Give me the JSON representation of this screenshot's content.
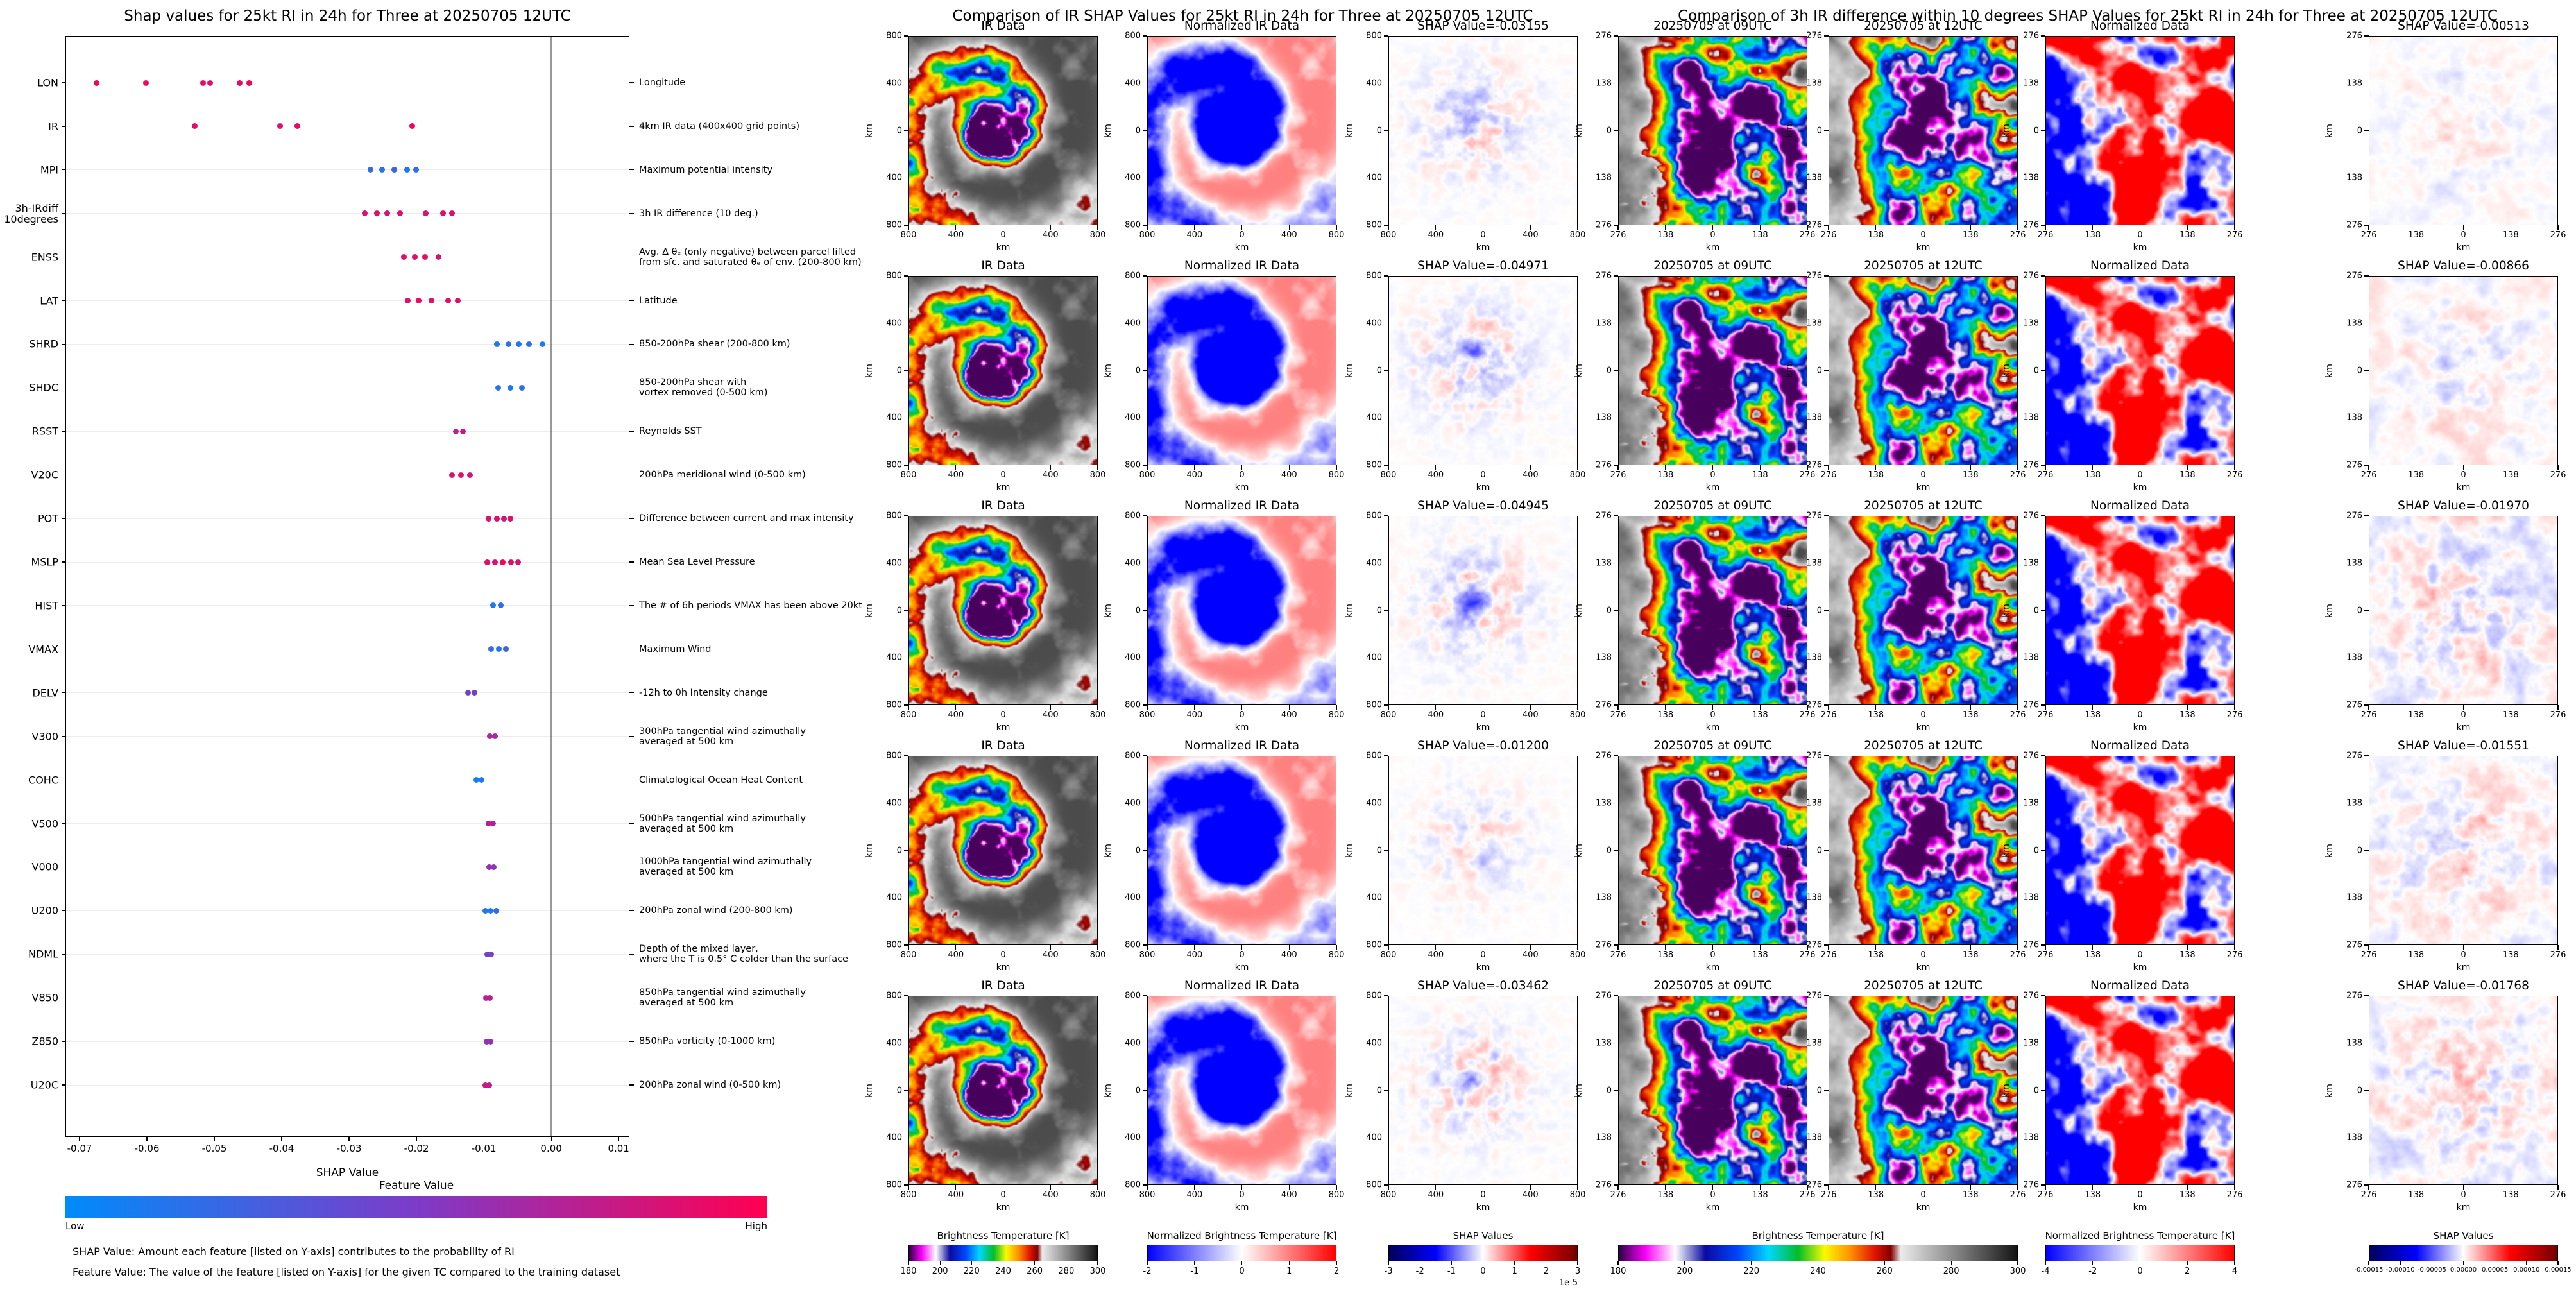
{
  "chart_data": [
    {
      "type": "scatter",
      "subtype": "shap_beeswarm",
      "title": "Shap values for 25kt RI in 24h for Three at 20250705 12UTC",
      "xlabel": "SHAP Value",
      "xlim": [
        -0.072,
        0.0117
      ],
      "x_ticks": [
        -0.07,
        -0.06,
        -0.05,
        -0.04,
        -0.03,
        -0.02,
        -0.01,
        0.0,
        0.01
      ],
      "x_tick_labels": [
        "-0.07",
        "-0.06",
        "-0.05",
        "-0.04",
        "-0.03",
        "-0.02",
        "-0.01",
        "0.00",
        "0.01"
      ],
      "legend": {
        "title": "Feature Value",
        "low": "Low",
        "high": "High",
        "color_low": "#008bfb",
        "color_high": "#ff0051"
      },
      "footnotes": [
        "SHAP Value: Amount each feature [listed on Y-axis] contributes to the probability of RI",
        "Feature Value: The value of the feature [listed on Y-axis] for the given TC compared to the training dataset"
      ],
      "features": [
        {
          "label": "LON",
          "description": "Longitude",
          "points": [
            [
              -0.0675,
              0.97
            ],
            [
              -0.0601,
              0.93
            ],
            [
              -0.0517,
              0.9
            ],
            [
              -0.0506,
              0.88
            ],
            [
              -0.0462,
              0.92
            ],
            [
              -0.0448,
              0.95
            ]
          ]
        },
        {
          "label": "IR",
          "description": "4km IR data (400x400 grid points)",
          "points": [
            [
              -0.0529,
              0.9
            ],
            [
              -0.0402,
              0.87
            ],
            [
              -0.0377,
              0.92
            ],
            [
              -0.0206,
              0.95
            ]
          ]
        },
        {
          "label": "MPI",
          "description": "Maximum potential intensity",
          "points": [
            [
              -0.0268,
              0.2
            ],
            [
              -0.0251,
              0.15
            ],
            [
              -0.0233,
              0.25
            ],
            [
              -0.0214,
              0.1
            ],
            [
              -0.0201,
              0.18
            ]
          ]
        },
        {
          "label": "3h-IRdiff\n10degrees",
          "description": "3h IR difference (10 deg.)",
          "points": [
            [
              -0.0277,
              0.85
            ],
            [
              -0.0259,
              0.9
            ],
            [
              -0.0243,
              0.82
            ],
            [
              -0.0224,
              0.88
            ],
            [
              -0.0186,
              0.84
            ],
            [
              -0.0161,
              0.9
            ],
            [
              -0.0147,
              0.86
            ]
          ]
        },
        {
          "label": "ENSS",
          "description": "Avg. Δ θₑ (only negative) between parcel lifted\nfrom sfc. and saturated θₑ of env. (200-800 km)",
          "points": [
            [
              -0.0219,
              0.9
            ],
            [
              -0.0202,
              0.86
            ],
            [
              -0.0187,
              0.92
            ],
            [
              -0.0167,
              0.84
            ]
          ]
        },
        {
          "label": "LAT",
          "description": "Latitude",
          "points": [
            [
              -0.0213,
              0.88
            ],
            [
              -0.0197,
              0.92
            ],
            [
              -0.0178,
              0.85
            ],
            [
              -0.0153,
              0.9
            ],
            [
              -0.0139,
              0.87
            ]
          ]
        },
        {
          "label": "SHRD",
          "description": "850-200hPa shear (200-800 km)",
          "points": [
            [
              -0.0081,
              0.12
            ],
            [
              -0.0063,
              0.18
            ],
            [
              -0.0048,
              0.1
            ],
            [
              -0.0033,
              0.2
            ],
            [
              -0.0013,
              0.12
            ]
          ]
        },
        {
          "label": "SHDC",
          "description": "850-200hPa shear with\nvortex removed (0-500 km)",
          "points": [
            [
              -0.0079,
              0.15
            ],
            [
              -0.0061,
              0.1
            ],
            [
              -0.0043,
              0.18
            ]
          ]
        },
        {
          "label": "RSST",
          "description": "Reynolds SST",
          "points": [
            [
              -0.0142,
              0.72
            ],
            [
              -0.0131,
              0.78
            ]
          ]
        },
        {
          "label": "V20C",
          "description": "200hPa meridional wind (0-500 km)",
          "points": [
            [
              -0.0147,
              0.85
            ],
            [
              -0.0134,
              0.9
            ],
            [
              -0.0121,
              0.82
            ]
          ]
        },
        {
          "label": "POT",
          "description": "Difference between current and max intensity",
          "points": [
            [
              -0.0093,
              0.85
            ],
            [
              -0.0081,
              0.9
            ],
            [
              -0.007,
              0.82
            ],
            [
              -0.0061,
              0.88
            ]
          ]
        },
        {
          "label": "MSLP",
          "description": "Mean Sea Level Pressure",
          "points": [
            [
              -0.0095,
              0.92
            ],
            [
              -0.0083,
              0.86
            ],
            [
              -0.0072,
              0.95
            ],
            [
              -0.006,
              0.9
            ],
            [
              -0.0049,
              0.85
            ]
          ]
        },
        {
          "label": "HIST",
          "description": "The # of 6h periods VMAX has been above 20kt",
          "points": [
            [
              -0.0086,
              0.12
            ],
            [
              -0.0075,
              0.18
            ]
          ]
        },
        {
          "label": "VMAX",
          "description": "Maximum Wind",
          "points": [
            [
              -0.0089,
              0.2
            ],
            [
              -0.0078,
              0.15
            ],
            [
              -0.0067,
              0.25
            ]
          ]
        },
        {
          "label": "DELV",
          "description": "-12h to 0h Intensity change",
          "points": [
            [
              -0.0123,
              0.45
            ],
            [
              -0.0114,
              0.5
            ]
          ]
        },
        {
          "label": "V300",
          "description": "300hPa tangential wind azimuthally\naveraged at 500 km",
          "points": [
            [
              -0.0091,
              0.7
            ],
            [
              -0.0083,
              0.65
            ]
          ]
        },
        {
          "label": "COHC",
          "description": "Climatological Ocean Heat Content",
          "points": [
            [
              -0.0111,
              0.08
            ],
            [
              -0.0103,
              0.12
            ]
          ]
        },
        {
          "label": "V500",
          "description": "500hPa tangential wind azimuthally\naveraged at 500 km",
          "points": [
            [
              -0.0093,
              0.75
            ],
            [
              -0.0086,
              0.7
            ]
          ]
        },
        {
          "label": "V000",
          "description": "1000hPa tangential wind azimuthally\naveraged at 500 km",
          "points": [
            [
              -0.0092,
              0.6
            ],
            [
              -0.0085,
              0.55
            ]
          ]
        },
        {
          "label": "U200",
          "description": "200hPa zonal wind (200-800 km)",
          "points": [
            [
              -0.0098,
              0.15
            ],
            [
              -0.009,
              0.1
            ],
            [
              -0.0082,
              0.2
            ]
          ]
        },
        {
          "label": "NDML",
          "description": "Depth of the mixed layer,\nwhere the T is 0.5° C colder than the surface",
          "points": [
            [
              -0.0095,
              0.5
            ],
            [
              -0.0089,
              0.45
            ]
          ]
        },
        {
          "label": "V850",
          "description": "850hPa tangential wind azimuthally\naveraged at 500 km",
          "points": [
            [
              -0.0097,
              0.7
            ],
            [
              -0.0091,
              0.75
            ]
          ]
        },
        {
          "label": "Z850",
          "description": "850hPa vorticity (0-1000 km)",
          "points": [
            [
              -0.0096,
              0.55
            ],
            [
              -0.009,
              0.6
            ]
          ]
        },
        {
          "label": "U20C",
          "description": "200hPa zonal wind (0-500 km)",
          "points": [
            [
              -0.0098,
              0.8
            ],
            [
              -0.0092,
              0.75
            ]
          ]
        }
      ]
    },
    {
      "type": "heatmap",
      "subtype": "ir_shap_comparison",
      "title": "Comparison of IR SHAP Values for 25kt RI in 24h for Three at 20250705 12UTC",
      "column_titles": [
        "IR Data",
        "Normalized IR Data"
      ],
      "shap_title_prefix": "SHAP Value=",
      "row_shap_values": [
        -0.03155,
        -0.04971,
        -0.04945,
        -0.012,
        -0.03462
      ],
      "axis": {
        "unit": "km",
        "tick_labels": [
          "800",
          "400",
          "0",
          "400",
          "800"
        ],
        "extent_km": 800
      },
      "colorbars": [
        {
          "label": "Brightness Temperature [K]",
          "tick_labels": [
            "180",
            "200",
            "220",
            "240",
            "260",
            "280",
            "300"
          ],
          "gradient": "ir"
        },
        {
          "label": "Normalized Brightness Temperature [K]",
          "tick_labels": [
            "-2",
            "-1",
            "0",
            "1",
            "2"
          ],
          "gradient": "bwr"
        },
        {
          "label": "SHAP Values",
          "tick_labels": [
            "-3",
            "-2",
            "-1",
            "0",
            "1",
            "2",
            "3"
          ],
          "offset_text": "1e-5",
          "gradient": "seismic"
        }
      ]
    },
    {
      "type": "heatmap",
      "subtype": "ir_diff_shap_comparison",
      "title": "Comparison of 3h IR difference within 10 degrees SHAP Values for 25kt RI in 24h for Three at 20250705 12UTC",
      "column_titles": [
        "20250705 at 09UTC",
        "20250705 at 12UTC",
        "Normalized Data"
      ],
      "shap_title_prefix": "SHAP Value=",
      "row_shap_values": [
        -0.00513,
        -0.00866,
        -0.0197,
        -0.01551,
        -0.01768
      ],
      "axis": {
        "unit": "km",
        "tick_labels": [
          "276",
          "138",
          "0",
          "138",
          "276"
        ],
        "extent_km": 276
      },
      "colorbars": [
        {
          "label": "Brightness Temperature [K]",
          "tick_labels": [
            "180",
            "200",
            "220",
            "240",
            "260",
            "280",
            "300"
          ],
          "gradient": "ir"
        },
        {
          "label": "Normalized Brightness Temperature [K]",
          "tick_labels": [
            "-4",
            "-2",
            "0",
            "2",
            "4"
          ],
          "gradient": "bwr"
        },
        {
          "label": "SHAP Values",
          "tick_labels": [
            "-0.00015",
            "-0.00010",
            "-0.00005",
            "0.00000",
            "0.00005",
            "0.00010",
            "0.00015"
          ],
          "gradient": "seismic",
          "small_ticks": true
        }
      ]
    }
  ]
}
